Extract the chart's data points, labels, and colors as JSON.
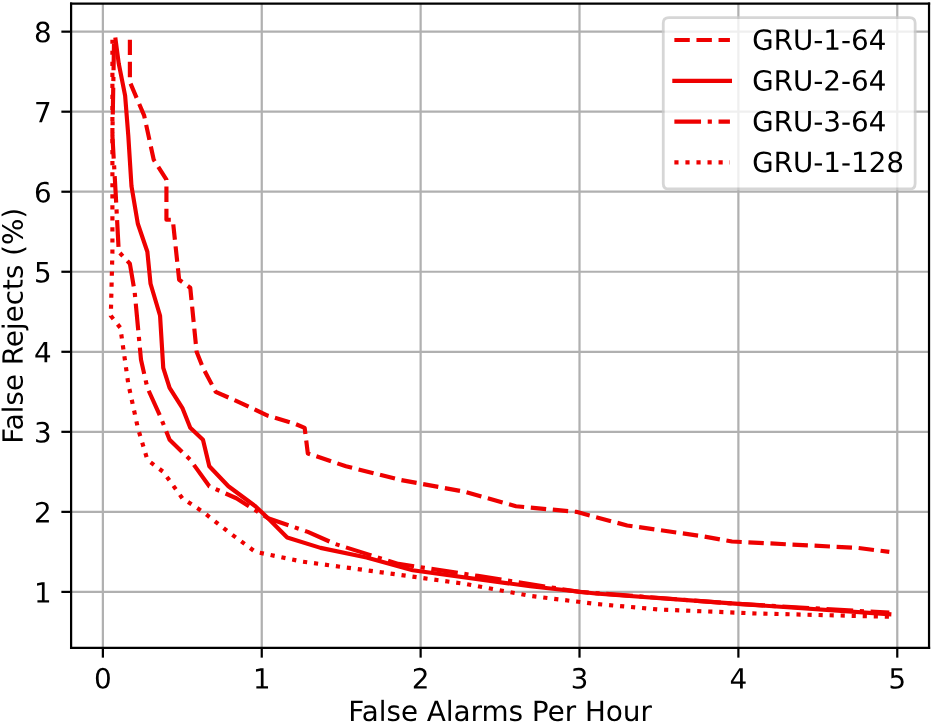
{
  "chart_data": {
    "type": "line",
    "xlabel": "False Alarms Per Hour",
    "ylabel": "False Rejects (%)",
    "xlim": [
      -0.2,
      5.2
    ],
    "ylim": [
      0.3,
      8.35
    ],
    "xticks": [
      0,
      1,
      2,
      3,
      4,
      5
    ],
    "yticks": [
      1,
      2,
      3,
      4,
      5,
      6,
      7,
      8
    ],
    "grid": true,
    "legend": "top right",
    "series": [
      {
        "name": "GRU-1-64",
        "color": "#ee0000",
        "line_style": "dashed",
        "x": [
          0.17,
          0.17,
          0.26,
          0.32,
          0.4,
          0.4,
          0.44,
          0.48,
          0.55,
          0.59,
          0.63,
          0.71,
          0.88,
          1.04,
          1.21,
          1.27,
          1.29,
          1.53,
          1.87,
          2.28,
          2.6,
          2.98,
          3.3,
          3.76,
          3.96,
          4.75,
          4.95
        ],
        "values": [
          7.9,
          7.37,
          6.95,
          6.4,
          6.15,
          5.65,
          5.65,
          4.9,
          4.8,
          4.0,
          3.8,
          3.5,
          3.35,
          3.2,
          3.1,
          3.05,
          2.73,
          2.57,
          2.4,
          2.25,
          2.07,
          2.0,
          1.83,
          1.7,
          1.63,
          1.55,
          1.5
        ]
      },
      {
        "name": "GRU-2-64",
        "color": "#ee0000",
        "line_style": "solid",
        "x": [
          0.08,
          0.1,
          0.14,
          0.16,
          0.18,
          0.22,
          0.28,
          0.3,
          0.36,
          0.38,
          0.42,
          0.5,
          0.55,
          0.63,
          0.67,
          0.79,
          0.96,
          1.04,
          1.16,
          1.37,
          1.66,
          1.95,
          2.69,
          3.1,
          4.0,
          4.95
        ],
        "values": [
          7.9,
          7.6,
          7.2,
          6.7,
          6.07,
          5.6,
          5.25,
          4.85,
          4.45,
          3.8,
          3.55,
          3.3,
          3.05,
          2.9,
          2.57,
          2.32,
          2.07,
          1.92,
          1.68,
          1.55,
          1.43,
          1.27,
          1.07,
          0.98,
          0.85,
          0.72
        ]
      },
      {
        "name": "GRU-3-64",
        "color": "#ee0000",
        "line_style": "dashdot",
        "x": [
          0.07,
          0.06,
          0.08,
          0.1,
          0.17,
          0.2,
          0.24,
          0.28,
          0.36,
          0.42,
          0.55,
          0.67,
          0.84,
          1.04,
          1.29,
          1.46,
          1.86,
          2.36,
          3.0,
          4.0,
          4.95
        ],
        "values": [
          7.85,
          6.7,
          6.0,
          5.25,
          5.1,
          4.75,
          3.9,
          3.55,
          3.2,
          2.9,
          2.65,
          2.32,
          2.17,
          1.92,
          1.75,
          1.6,
          1.35,
          1.2,
          1.0,
          0.85,
          0.74
        ]
      },
      {
        "name": "GRU-1-128",
        "color": "#ee0000",
        "line_style": "dotted",
        "x": [
          0.06,
          0.06,
          0.06,
          0.05,
          0.11,
          0.16,
          0.22,
          0.28,
          0.38,
          0.5,
          0.63,
          0.79,
          0.96,
          1.25,
          1.66,
          2.28,
          2.69,
          3.1,
          3.5,
          4.12,
          4.95
        ],
        "values": [
          7.9,
          6.7,
          5.25,
          4.45,
          4.3,
          3.6,
          3.05,
          2.65,
          2.5,
          2.17,
          2.0,
          1.75,
          1.5,
          1.38,
          1.27,
          1.1,
          0.95,
          0.85,
          0.78,
          0.73,
          0.69
        ]
      }
    ]
  }
}
